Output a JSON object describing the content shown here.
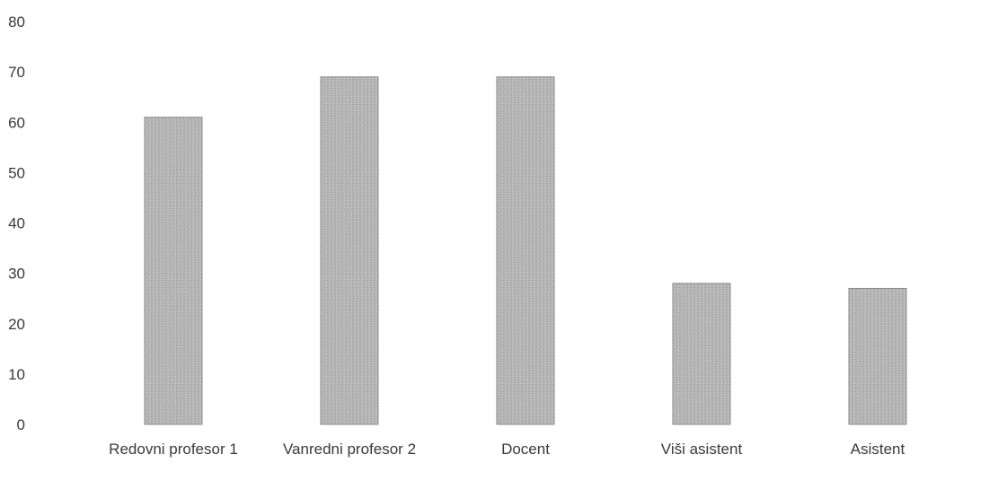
{
  "chart_data": {
    "type": "bar",
    "title": "",
    "xlabel": "",
    "ylabel": "",
    "categories": [
      "Redovni profesor 1",
      "Vanredni profesor 2",
      "Docent",
      "Viši asistent",
      "Asistent"
    ],
    "values": [
      61,
      69,
      69,
      28,
      27
    ],
    "ylim": [
      0,
      80
    ],
    "yticks": [
      0,
      10,
      20,
      30,
      40,
      50,
      60,
      70,
      80
    ],
    "grid": false,
    "legend": "none",
    "bar_color": "#b3b3b3",
    "bar_edge_color": "#8c8c8c"
  }
}
